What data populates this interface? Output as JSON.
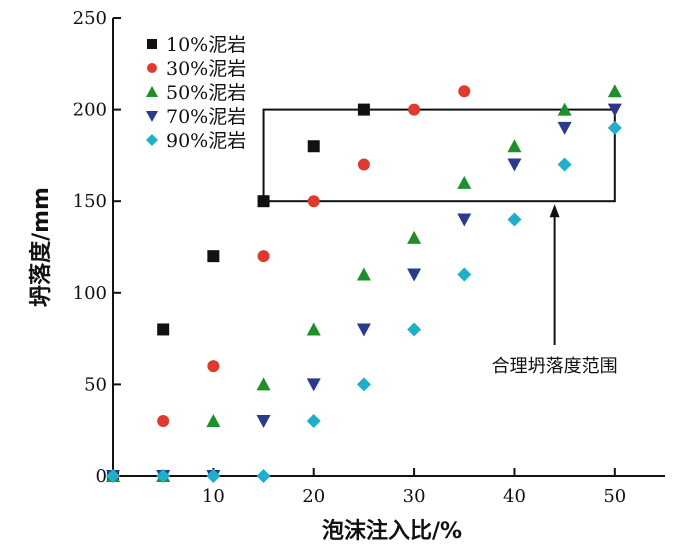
{
  "chart_data": {
    "type": "scatter",
    "title": "",
    "xlabel": "泡沫注入比/%",
    "ylabel": "坍落度/mm",
    "xlim": [
      0,
      55
    ],
    "ylim": [
      0,
      250
    ],
    "xticks": [
      10,
      20,
      30,
      40,
      50
    ],
    "yticks": [
      0,
      50,
      100,
      150,
      200,
      250
    ],
    "grid": false,
    "legend_position": "top-left",
    "series": [
      {
        "name": "10%泥岩",
        "marker": "square",
        "color": "#111111",
        "points": [
          [
            0,
            0
          ],
          [
            5,
            80
          ],
          [
            10,
            120
          ],
          [
            15,
            150
          ],
          [
            20,
            180
          ],
          [
            25,
            200
          ]
        ]
      },
      {
        "name": "30%泥岩",
        "marker": "circle",
        "color": "#e03a2f",
        "points": [
          [
            0,
            0
          ],
          [
            5,
            30
          ],
          [
            10,
            60
          ],
          [
            15,
            120
          ],
          [
            20,
            150
          ],
          [
            25,
            170
          ],
          [
            30,
            200
          ],
          [
            35,
            210
          ]
        ]
      },
      {
        "name": "50%泥岩",
        "marker": "triangle-up",
        "color": "#1f8f2b",
        "points": [
          [
            0,
            0
          ],
          [
            5,
            0
          ],
          [
            10,
            30
          ],
          [
            15,
            50
          ],
          [
            20,
            80
          ],
          [
            25,
            110
          ],
          [
            30,
            130
          ],
          [
            35,
            160
          ],
          [
            40,
            180
          ],
          [
            45,
            200
          ],
          [
            50,
            210
          ]
        ]
      },
      {
        "name": "70%泥岩",
        "marker": "triangle-down",
        "color": "#2a3a8c",
        "points": [
          [
            0,
            0
          ],
          [
            5,
            0
          ],
          [
            10,
            0
          ],
          [
            15,
            30
          ],
          [
            20,
            50
          ],
          [
            25,
            80
          ],
          [
            30,
            110
          ],
          [
            35,
            140
          ],
          [
            40,
            170
          ],
          [
            45,
            190
          ],
          [
            50,
            200
          ]
        ]
      },
      {
        "name": "90%泥岩",
        "marker": "diamond",
        "color": "#1fb0c9",
        "points": [
          [
            0,
            0
          ],
          [
            5,
            0
          ],
          [
            10,
            0
          ],
          [
            15,
            0
          ],
          [
            20,
            30
          ],
          [
            25,
            50
          ],
          [
            30,
            80
          ],
          [
            35,
            110
          ],
          [
            40,
            140
          ],
          [
            45,
            170
          ],
          [
            50,
            190
          ]
        ]
      }
    ],
    "annotation": {
      "label": "合理坍落度范围",
      "box_x": [
        15,
        50
      ],
      "box_y": [
        150,
        200
      ],
      "arrow_x": 44
    }
  }
}
